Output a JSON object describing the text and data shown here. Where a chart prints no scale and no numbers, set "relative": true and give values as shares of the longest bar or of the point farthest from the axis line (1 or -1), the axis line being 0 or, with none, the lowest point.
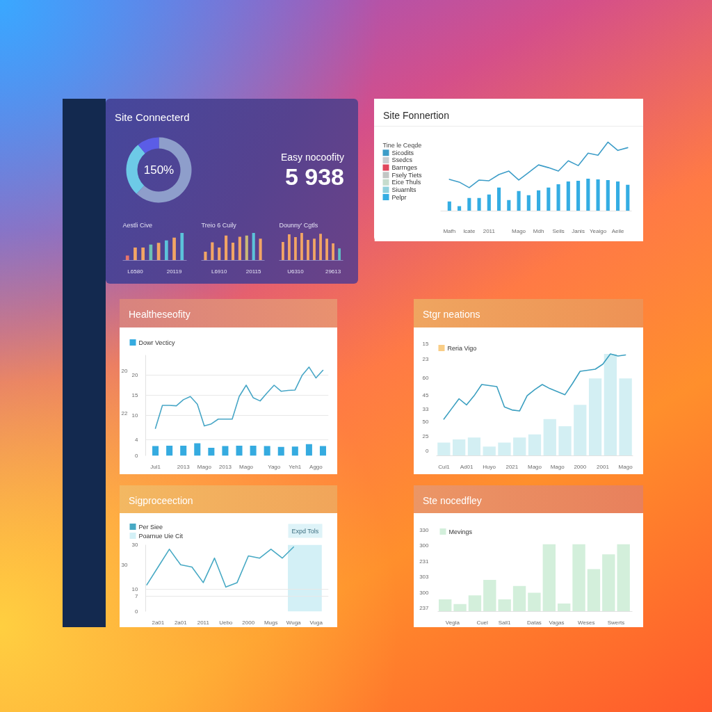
{
  "chart_data": [
    {
      "type": "donut",
      "title": "Site Connecterd",
      "categories": [
        null,
        null,
        null
      ],
      "values": [
        62,
        27,
        11
      ],
      "colors": [
        "#8e9ecb",
        "#6dcae7",
        "#5b5de6"
      ],
      "annotations": [
        "150%"
      ]
    },
    {
      "type": "other",
      "title": "Easy nocoofity",
      "annotations": [
        "5 938"
      ]
    },
    {
      "type": "bar",
      "title": "Aestli Cive",
      "relative": true,
      "categories": [
        null,
        "L6580",
        null,
        null,
        null,
        null,
        "20119",
        null
      ],
      "values": [
        0.18,
        0.47,
        0.47,
        0.58,
        0.64,
        0.73,
        0.83,
        1
      ],
      "colors": [
        "#e8746a",
        "#f2a565",
        "#f2a565",
        "#6cc2b4",
        "#f2a565",
        "#5cc3da",
        "#f2a565",
        "#5cc3da"
      ]
    },
    {
      "type": "bar",
      "title": "Treio 6 Cuily",
      "relative": true,
      "categories": [
        null,
        null,
        "L6910",
        null,
        null,
        null,
        null,
        "20115",
        null
      ],
      "values": [
        0.32,
        0.66,
        0.47,
        0.91,
        0.65,
        0.86,
        0.91,
        1,
        0.79
      ],
      "colors": [
        "#f2a565",
        "#f2a565",
        "#f2a565",
        "#f2a565",
        "#f2a565",
        "#f2a565",
        "#c9b878",
        "#5cc3da",
        "#f2a565"
      ]
    },
    {
      "type": "bar",
      "title": "Dounny' Cgtls",
      "relative": true,
      "categories": [
        null,
        null,
        "U6310",
        null,
        null,
        null,
        null,
        null,
        "29613",
        null
      ],
      "values": [
        0.67,
        0.95,
        0.85,
        1,
        0.75,
        0.79,
        0.97,
        0.79,
        0.62,
        0.44
      ],
      "colors": [
        "#f2a565",
        "#f2a565",
        "#f2a565",
        "#f2a565",
        "#f2a565",
        "#f2a565",
        "#f2a565",
        "#f2a565",
        "#f2a565",
        "#5fc0c4"
      ]
    },
    {
      "type": "bar",
      "title": "Site Fonnertion",
      "relative": true,
      "legend": "left",
      "legend_title": "Tine le Ceqde",
      "categories": [
        "Mafh",
        null,
        "Icate",
        null,
        "2011",
        null,
        null,
        "Mago",
        null,
        "Mdh",
        null,
        "Seils",
        null,
        "Janis",
        null,
        "Yeaigo",
        null,
        "Aeile",
        null
      ],
      "series": [
        {
          "name": "Sicodits",
          "type": "line",
          "color": "#3d9dc8",
          "values": [
            0.46,
            0.42,
            0.34,
            0.45,
            0.44,
            0.53,
            0.58,
            0.45,
            0.56,
            0.67,
            0.63,
            0.58,
            0.73,
            0.66,
            0.84,
            0.81,
            1.0,
            0.88,
            0.92
          ]
        },
        {
          "name": "Ssedcs",
          "type": "bar",
          "color": "#c9cdd0",
          "values": [
            null,
            null,
            null,
            null,
            null,
            null,
            null,
            null,
            null,
            null,
            null,
            null,
            null,
            null,
            null,
            null,
            null,
            null,
            null
          ]
        },
        {
          "name": "Barrnges",
          "type": "bar",
          "color": "#e0475c",
          "values": [
            null,
            null,
            null,
            null,
            null,
            null,
            null,
            null,
            null,
            null,
            null,
            null,
            null,
            null,
            null,
            null,
            null,
            null,
            null
          ]
        },
        {
          "name": "Fsely Tiets",
          "type": "bar",
          "color": "#c2c6c4",
          "values": [
            null,
            null,
            null,
            null,
            null,
            null,
            null,
            null,
            null,
            null,
            null,
            null,
            null,
            null,
            null,
            null,
            null,
            null,
            null
          ]
        },
        {
          "name": "Eice Thuls",
          "type": "bar",
          "color": "#c6dccd",
          "values": [
            null,
            null,
            null,
            null,
            null,
            null,
            null,
            null,
            null,
            null,
            null,
            null,
            null,
            null,
            null,
            null,
            null,
            null,
            null
          ]
        },
        {
          "name": "Siuarnlts",
          "type": "bar",
          "color": "#8fd0dd",
          "values": [
            null,
            null,
            null,
            null,
            null,
            null,
            null,
            null,
            null,
            null,
            null,
            null,
            null,
            null,
            null,
            null,
            null,
            null,
            null
          ]
        },
        {
          "name": "Pelpr",
          "type": "bar",
          "color": "#34ade3",
          "values": [
            0.14,
            0.07,
            0.19,
            0.19,
            0.24,
            0.34,
            0.16,
            0.29,
            0.23,
            0.3,
            0.34,
            0.39,
            0.43,
            0.44,
            0.47,
            0.46,
            0.45,
            0.43,
            0.38
          ]
        }
      ]
    },
    {
      "type": "bar",
      "title": "Healtheseofity",
      "legend": "top left",
      "grid": "y",
      "ylim": [
        0,
        25
      ],
      "categories": [
        "Jul1",
        null,
        null,
        null,
        "2013",
        null,
        null,
        "Mago",
        null,
        null,
        "2013",
        null,
        null,
        "Mago",
        null,
        null,
        null,
        "Yago",
        null,
        null,
        "Yeh1",
        null,
        null,
        "Aggo",
        null
      ],
      "yticks": [
        0,
        4,
        10,
        15,
        20
      ],
      "series": [
        {
          "name": "Dowr Vecticy",
          "type": "bar",
          "color": "#35abe0",
          "values": [
            2.4,
            null,
            2.5,
            null,
            2.5,
            null,
            3.1,
            null,
            2.0,
            null,
            2.4,
            null,
            2.5,
            null,
            2.5,
            null,
            2.4,
            null,
            2.2,
            null,
            2.3,
            null,
            2.9,
            null,
            2.4
          ]
        },
        {
          "type": "line",
          "color": "#47a6c6",
          "values": [
            6.8,
            12.5,
            12.5,
            12.4,
            13.9,
            14.7,
            12.8,
            7.4,
            7.9,
            9.1,
            9.1,
            9.1,
            14.7,
            17.5,
            14.4,
            13.6,
            15.6,
            17.5,
            16.0,
            16.2,
            16.3,
            19.9,
            22.0,
            19.3,
            21.2
          ]
        }
      ],
      "annotations": [
        "20",
        "22"
      ]
    },
    {
      "type": "bar",
      "title": "Stgr neations",
      "legend": "top left",
      "relative": true,
      "categories": [
        "Cul1",
        null,
        null,
        "Ad01",
        null,
        null,
        "Huyo",
        null,
        null,
        "2021",
        null,
        null,
        "Mago",
        null,
        null,
        "Mago",
        null,
        null,
        "2000",
        null,
        null,
        "2001",
        null,
        null,
        "Mago"
      ],
      "series": [
        {
          "name": "Reria Vigo",
          "type": "bar",
          "color": "#f9cd86",
          "values": [
            null,
            null,
            null,
            null,
            null,
            null,
            null,
            null,
            null,
            null,
            null,
            null,
            null,
            null,
            null,
            null,
            null,
            null,
            null,
            null,
            null,
            null,
            null,
            null,
            null
          ]
        },
        {
          "type": "bar",
          "color": "#d3eff3",
          "values": [
            0.13,
            null,
            0.16,
            null,
            0.18,
            null,
            0.09,
            null,
            0.13,
            null,
            0.18,
            null,
            0.21,
            null,
            0.36,
            null,
            0.29,
            null,
            0.5,
            null,
            0.76,
            null,
            1.0,
            null,
            0.76
          ]
        },
        {
          "type": "line",
          "color": "#3b9fc0",
          "values": [
            0.36,
            0.46,
            0.56,
            0.5,
            0.59,
            0.7,
            0.69,
            0.68,
            0.48,
            0.45,
            0.44,
            0.59,
            0.65,
            0.7,
            0.66,
            0.63,
            0.6,
            0.71,
            0.83,
            0.84,
            0.85,
            0.9,
            1.0,
            0.98,
            0.99
          ]
        }
      ],
      "annotations": [
        "15",
        "23",
        "60",
        "45",
        "33",
        "50",
        "25",
        "0"
      ]
    },
    {
      "type": "line",
      "title": "Sigproceection",
      "legend": "top left",
      "grid": "y",
      "ylim": [
        0,
        30
      ],
      "categories": [
        null,
        "2a01",
        null,
        "2a01",
        null,
        "2011",
        null,
        "Uebo",
        null,
        "2000",
        null,
        "Mugs",
        null,
        "Wuga",
        null,
        "Vuga",
        null
      ],
      "yticks": [
        0,
        7,
        10,
        30
      ],
      "series": [
        {
          "name": "Per Siee",
          "color": "#47a9c4",
          "values": [
            12,
            20,
            28,
            21,
            20,
            13,
            24,
            11,
            13,
            25,
            24,
            28,
            24,
            29,
            null,
            null,
            null
          ]
        }
      ],
      "bands": [
        {
          "axis": "x",
          "from": "Wuga",
          "to": "Vuga",
          "label": "Poarnue Uie Cit",
          "color": "#d3f0f6"
        }
      ],
      "annotations": [
        "Expd Tols",
        "30"
      ]
    },
    {
      "type": "bar",
      "title": "Ste nocedfley",
      "legend": "top left",
      "relative": true,
      "categories": [
        null,
        "Vegla",
        null,
        null,
        null,
        "Cuel",
        null,
        null,
        "Sail1",
        null,
        null,
        null,
        "Datas",
        null,
        null,
        "Vagas",
        null,
        null,
        null,
        "Weses",
        null,
        null,
        null,
        "Swerts",
        null
      ],
      "series": [
        {
          "name": "Mevings",
          "color": "#d3efdb",
          "values": [
            0.18,
            null,
            0.11,
            null,
            0.24,
            null,
            0.47,
            null,
            0.18,
            null,
            0.38,
            null,
            0.28,
            null,
            1,
            null,
            0.12,
            null,
            1,
            null,
            0.63,
            null,
            0.85,
            null,
            1
          ]
        }
      ],
      "annotations": [
        "330",
        "300",
        "231",
        "303",
        "300",
        "237"
      ]
    }
  ]
}
